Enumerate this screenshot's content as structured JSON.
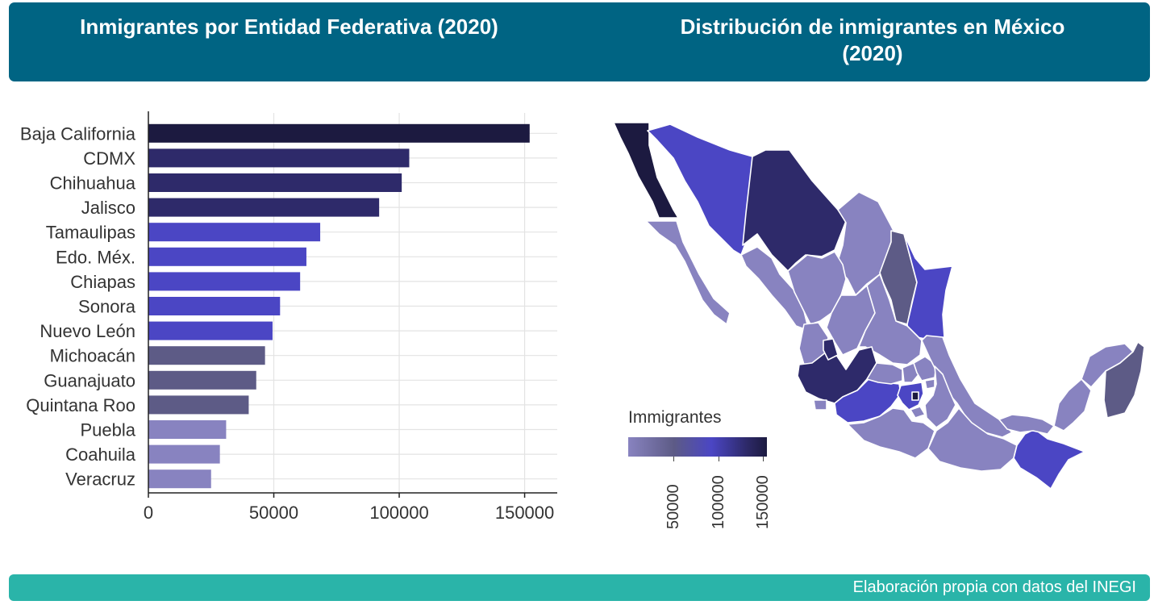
{
  "header": {
    "left_title": "Inmigrantes por Entidad Federativa (2020)",
    "right_title_line1": "Distribución de inmigrantes en México",
    "right_title_line2": "(2020)"
  },
  "footer": {
    "caption": "Elaboración propia con datos del INEGI"
  },
  "chart_data": [
    {
      "type": "bar",
      "orientation": "horizontal",
      "title": "Inmigrantes por Entidad Federativa (2020)",
      "categories": [
        "Baja California",
        "CDMX",
        "Chihuahua",
        "Jalisco",
        "Tamaulipas",
        "Edo. Méx.",
        "Chiapas",
        "Sonora",
        "Nuevo León",
        "Michoacán",
        "Guanajuato",
        "Quintana Roo",
        "Puebla",
        "Coahuila",
        "Veracruz"
      ],
      "values": [
        152000,
        104000,
        101000,
        92000,
        68500,
        63000,
        60500,
        52500,
        49500,
        46500,
        43000,
        40000,
        31000,
        28500,
        25000
      ],
      "colors": [
        "#1c1a40",
        "#2e2a6a",
        "#2e2a6a",
        "#2e2a6a",
        "#4b46c4",
        "#4b46c4",
        "#4b46c4",
        "#4b46c4",
        "#4b46c4",
        "#5d5b86",
        "#5d5b86",
        "#5d5b86",
        "#8883c0",
        "#8883c0",
        "#8883c0"
      ],
      "xlim": [
        0,
        163000
      ],
      "xticks": [
        0,
        50000,
        100000,
        150000
      ],
      "xtick_labels": [
        "0",
        "50000",
        "100000",
        "150000"
      ],
      "grid": true
    },
    {
      "type": "choropleth",
      "title": "Distribución de inmigrantes en México (2020)",
      "legend_title": "Immigrantes",
      "legend_ticks": [
        "50000",
        "100000",
        "150000"
      ],
      "legend_range": [
        0,
        155000
      ]
    }
  ],
  "colors": {
    "header_bg": "#006483",
    "footer_bg": "#2ab4a9",
    "very_dark": "#1c1a40",
    "dark": "#2e2a6a",
    "blue": "#4b46c4",
    "slate": "#5d5b86",
    "light": "#8883c0"
  }
}
